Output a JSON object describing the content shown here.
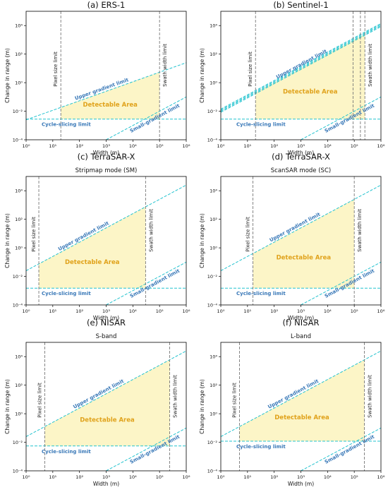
{
  "figure": {
    "common": {
      "type": "area",
      "xlabel": "Width (m)",
      "ylabel": "Change in range (m)",
      "xscale": "log",
      "yscale": "log",
      "xlim": [
        1,
        1000000
      ],
      "ylim": [
        0.0001,
        100000
      ],
      "x_ticks": [
        1,
        10,
        100,
        1000,
        10000,
        100000,
        1000000
      ],
      "x_tick_labels": [
        "10⁰",
        "10¹",
        "10²",
        "10³",
        "10⁴",
        "10⁵",
        "10⁶"
      ],
      "y_ticks": [
        0.0001,
        0.01,
        1,
        100,
        10000
      ],
      "y_tick_labels": [
        "10⁻⁴",
        "10⁻²",
        "10⁰",
        "10²",
        "10⁴"
      ],
      "grid": false,
      "labels": {
        "pixel": "Pixel size limit",
        "swath": "Swath width limit",
        "upper": "Upper gradient limit",
        "small": "Small-gradient limit",
        "cycle": "Cycle-slicing limit",
        "area": "Detectable Area"
      },
      "colors": {
        "area_fill": "#fcf5c7",
        "area_text": "#e0a21b",
        "limit_line": "#23c3cf",
        "limit_text": "#3a79b8",
        "vertical_line": "#777777"
      }
    }
  },
  "chart_data": [
    {
      "title": "(a) ERS-1",
      "subtitle": "",
      "pixel_size_m": 20,
      "swath_width_m": 100000,
      "upper_gradient": {
        "x": [
          1,
          1000000
        ],
        "y": [
          0.0025,
          25
        ]
      },
      "small_gradient": {
        "x": [
          1000,
          1000000
        ],
        "y": [
          0.0001,
          0.1
        ]
      },
      "cycle_slicing_m": 0.0028,
      "upper_band": false
    },
    {
      "title": "(b) Sentinel-1",
      "subtitle": "",
      "pixel_size_m": 20,
      "swath_width_m": 250000,
      "extra_vertical_m": [
        90000,
        170000
      ],
      "upper_gradient": {
        "x": [
          1,
          1000000
        ],
        "y": [
          0.01,
          10000
        ]
      },
      "small_gradient": {
        "x": [
          1000,
          1000000
        ],
        "y": [
          0.0001,
          0.1
        ]
      },
      "cycle_slicing_m": 0.0028,
      "upper_band": true
    },
    {
      "title": "(c) TerraSAR-X",
      "subtitle": "Stripmap mode (SM)",
      "pixel_size_m": 3,
      "swath_width_m": 30000,
      "upper_gradient": {
        "x": [
          1,
          1000000
        ],
        "y": [
          0.025,
          25000
        ]
      },
      "small_gradient": {
        "x": [
          1000,
          1000000
        ],
        "y": [
          0.0001,
          0.1
        ]
      },
      "cycle_slicing_m": 0.0015,
      "upper_band": false
    },
    {
      "title": "(d) TerraSAR-X",
      "subtitle": "ScanSAR mode (SC)",
      "pixel_size_m": 16,
      "swath_width_m": 100000,
      "upper_gradient": {
        "x": [
          1,
          1000000
        ],
        "y": [
          0.025,
          25000
        ]
      },
      "small_gradient": {
        "x": [
          1000,
          1000000
        ],
        "y": [
          0.0001,
          0.1
        ]
      },
      "cycle_slicing_m": 0.0015,
      "upper_band": false
    },
    {
      "title": "(e) NISAR",
      "subtitle": "S-band",
      "pixel_size_m": 5,
      "swath_width_m": 240000,
      "upper_gradient": {
        "x": [
          1,
          1000000
        ],
        "y": [
          0.025,
          25000
        ]
      },
      "small_gradient": {
        "x": [
          1000,
          1000000
        ],
        "y": [
          0.0001,
          0.1
        ]
      },
      "cycle_slicing_m": 0.0055,
      "upper_band": false
    },
    {
      "title": "(f) NISAR",
      "subtitle": "L-band",
      "pixel_size_m": 5,
      "swath_width_m": 240000,
      "upper_gradient": {
        "x": [
          1,
          1000000
        ],
        "y": [
          0.025,
          25000
        ]
      },
      "small_gradient": {
        "x": [
          1000,
          1000000
        ],
        "y": [
          0.0001,
          0.1
        ]
      },
      "cycle_slicing_m": 0.012,
      "upper_band": false
    }
  ]
}
